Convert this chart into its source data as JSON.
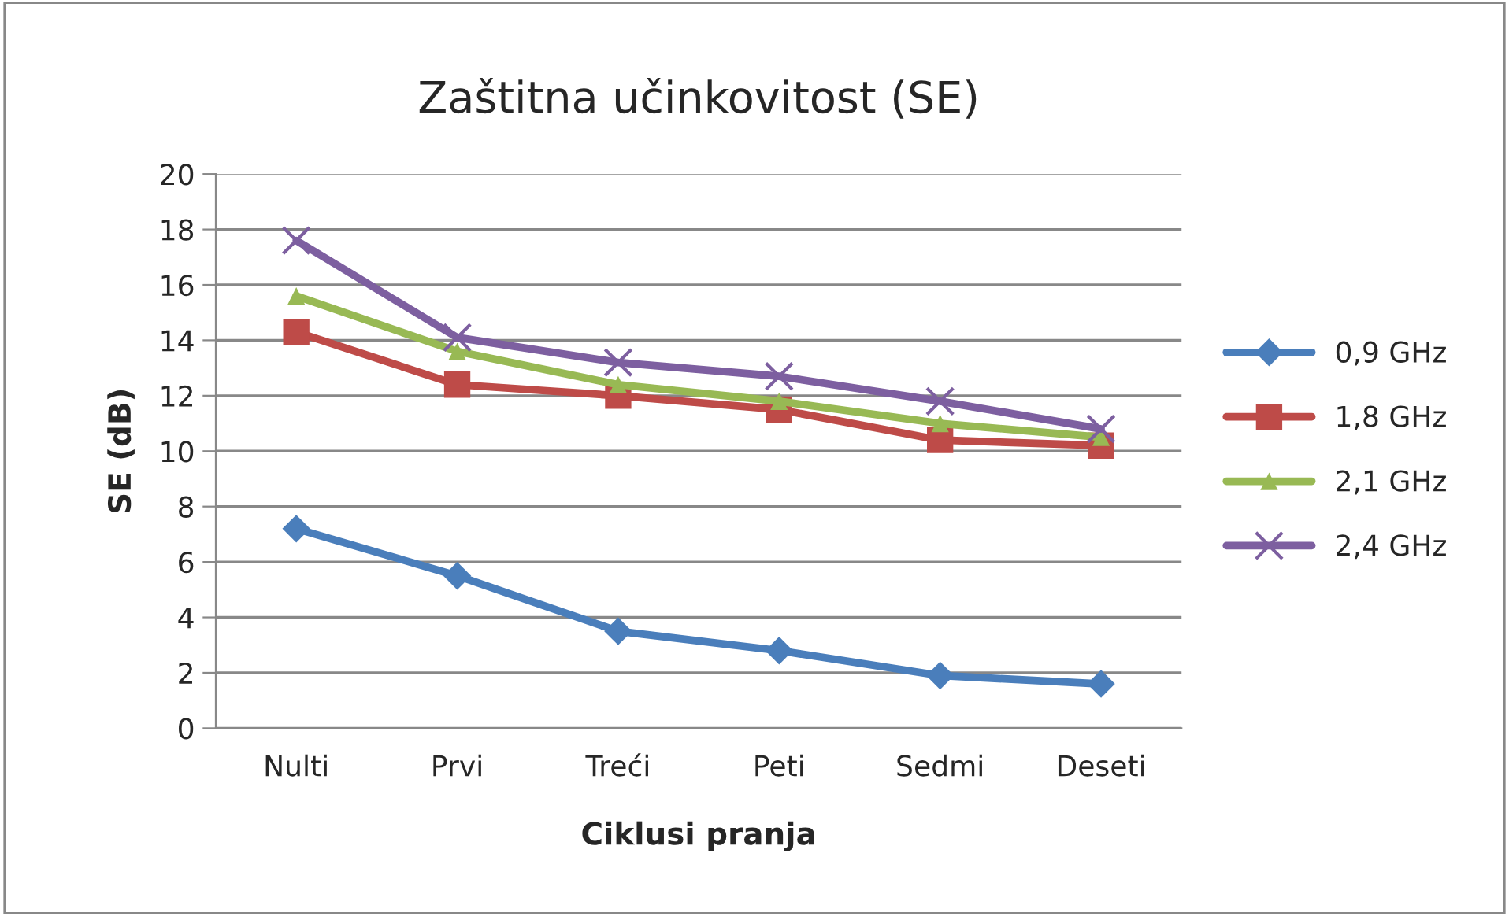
{
  "chart_data": {
    "type": "line",
    "title": "Zaštitna učinkovitost (SE)",
    "xlabel": "Ciklusi pranja",
    "ylabel": "SE (dB)",
    "categories": [
      "Nulti",
      "Prvi",
      "Treći",
      "Peti",
      "Sedmi",
      "Deseti"
    ],
    "series": [
      {
        "name": "0,9 GHz",
        "color": "#4a7ebb",
        "marker": "diamond",
        "values": [
          7.2,
          5.5,
          3.5,
          2.8,
          1.9,
          1.6
        ]
      },
      {
        "name": "1,8 GHz",
        "color": "#be4b48",
        "marker": "square",
        "values": [
          14.3,
          12.4,
          12.0,
          11.5,
          10.4,
          10.2
        ]
      },
      {
        "name": "2,1 GHz",
        "color": "#98b954",
        "marker": "triangle",
        "values": [
          15.6,
          13.6,
          12.4,
          11.8,
          11.0,
          10.5
        ]
      },
      {
        "name": "2,4 GHz",
        "color": "#7d5fa0",
        "marker": "cross",
        "values": [
          17.6,
          14.1,
          13.2,
          12.7,
          11.8,
          10.8
        ]
      }
    ],
    "ylim": [
      0,
      20
    ],
    "yticks": [
      0,
      2,
      4,
      6,
      8,
      10,
      12,
      14,
      16,
      18,
      20
    ],
    "grid": "y",
    "legend": "right"
  }
}
